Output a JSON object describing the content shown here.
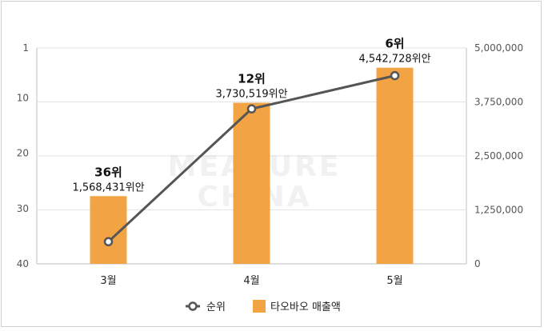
{
  "chart_data": {
    "type": "bar",
    "categories": [
      "3월",
      "4월",
      "5월"
    ],
    "series": [
      {
        "name": "타오바오 매출액",
        "type": "bar",
        "axis": "right",
        "values": [
          1568431,
          3730519,
          4542728
        ],
        "labels": [
          "1,568,431위안",
          "3,730,519위안",
          "4,542,728위안"
        ],
        "color": "#f2a444"
      },
      {
        "name": "순위",
        "type": "line",
        "axis": "left",
        "values": [
          36,
          12,
          6
        ],
        "labels": [
          "36위",
          "12위",
          "6위"
        ],
        "color": "#555555"
      }
    ],
    "left_axis": {
      "ticks": [
        1,
        10,
        20,
        30,
        40
      ],
      "range": [
        1,
        40
      ],
      "inverted": true
    },
    "right_axis": {
      "ticks": [
        0,
        1250000,
        2500000,
        3750000,
        5000000
      ],
      "tick_labels": [
        "0",
        "1,250,000",
        "2,500,000",
        "3,750,000",
        "5,000,000"
      ],
      "range": [
        0,
        5000000
      ]
    },
    "grid": true,
    "legend_position": "bottom",
    "watermark": [
      "MEASURE",
      "CHINA"
    ]
  }
}
